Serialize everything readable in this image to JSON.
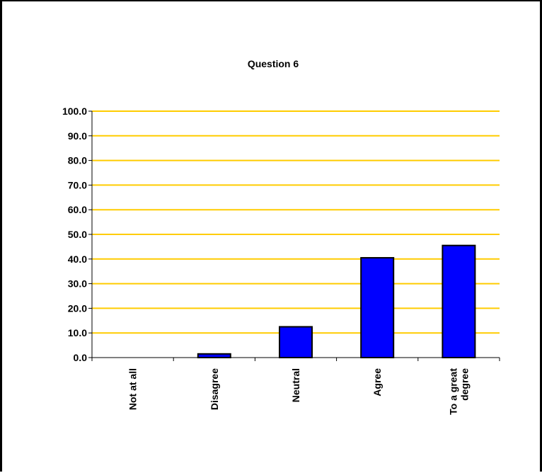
{
  "chart_data": {
    "type": "bar",
    "title": "Question 6",
    "xlabel": "",
    "ylabel": "",
    "categories": [
      "Not at all",
      "Disagree",
      "Neutral",
      "Agree",
      "To a great degree"
    ],
    "category_lines": [
      [
        "Not at all"
      ],
      [
        "Disagree"
      ],
      [
        "Neutral"
      ],
      [
        "Agree"
      ],
      [
        "To a great",
        "degree"
      ]
    ],
    "values": [
      0.0,
      1.5,
      12.5,
      40.5,
      45.5
    ],
    "ylim": [
      0,
      100
    ],
    "ytick_step": 10,
    "ytick_labels": [
      "0.0",
      "10.0",
      "20.0",
      "30.0",
      "40.0",
      "50.0",
      "60.0",
      "70.0",
      "80.0",
      "90.0",
      "100.0"
    ],
    "grid": true,
    "legend": "none",
    "colors": {
      "bar": "#0000FF",
      "bar_edge": "#000000",
      "grid": "#FFCC00",
      "axis": "#000000"
    }
  }
}
